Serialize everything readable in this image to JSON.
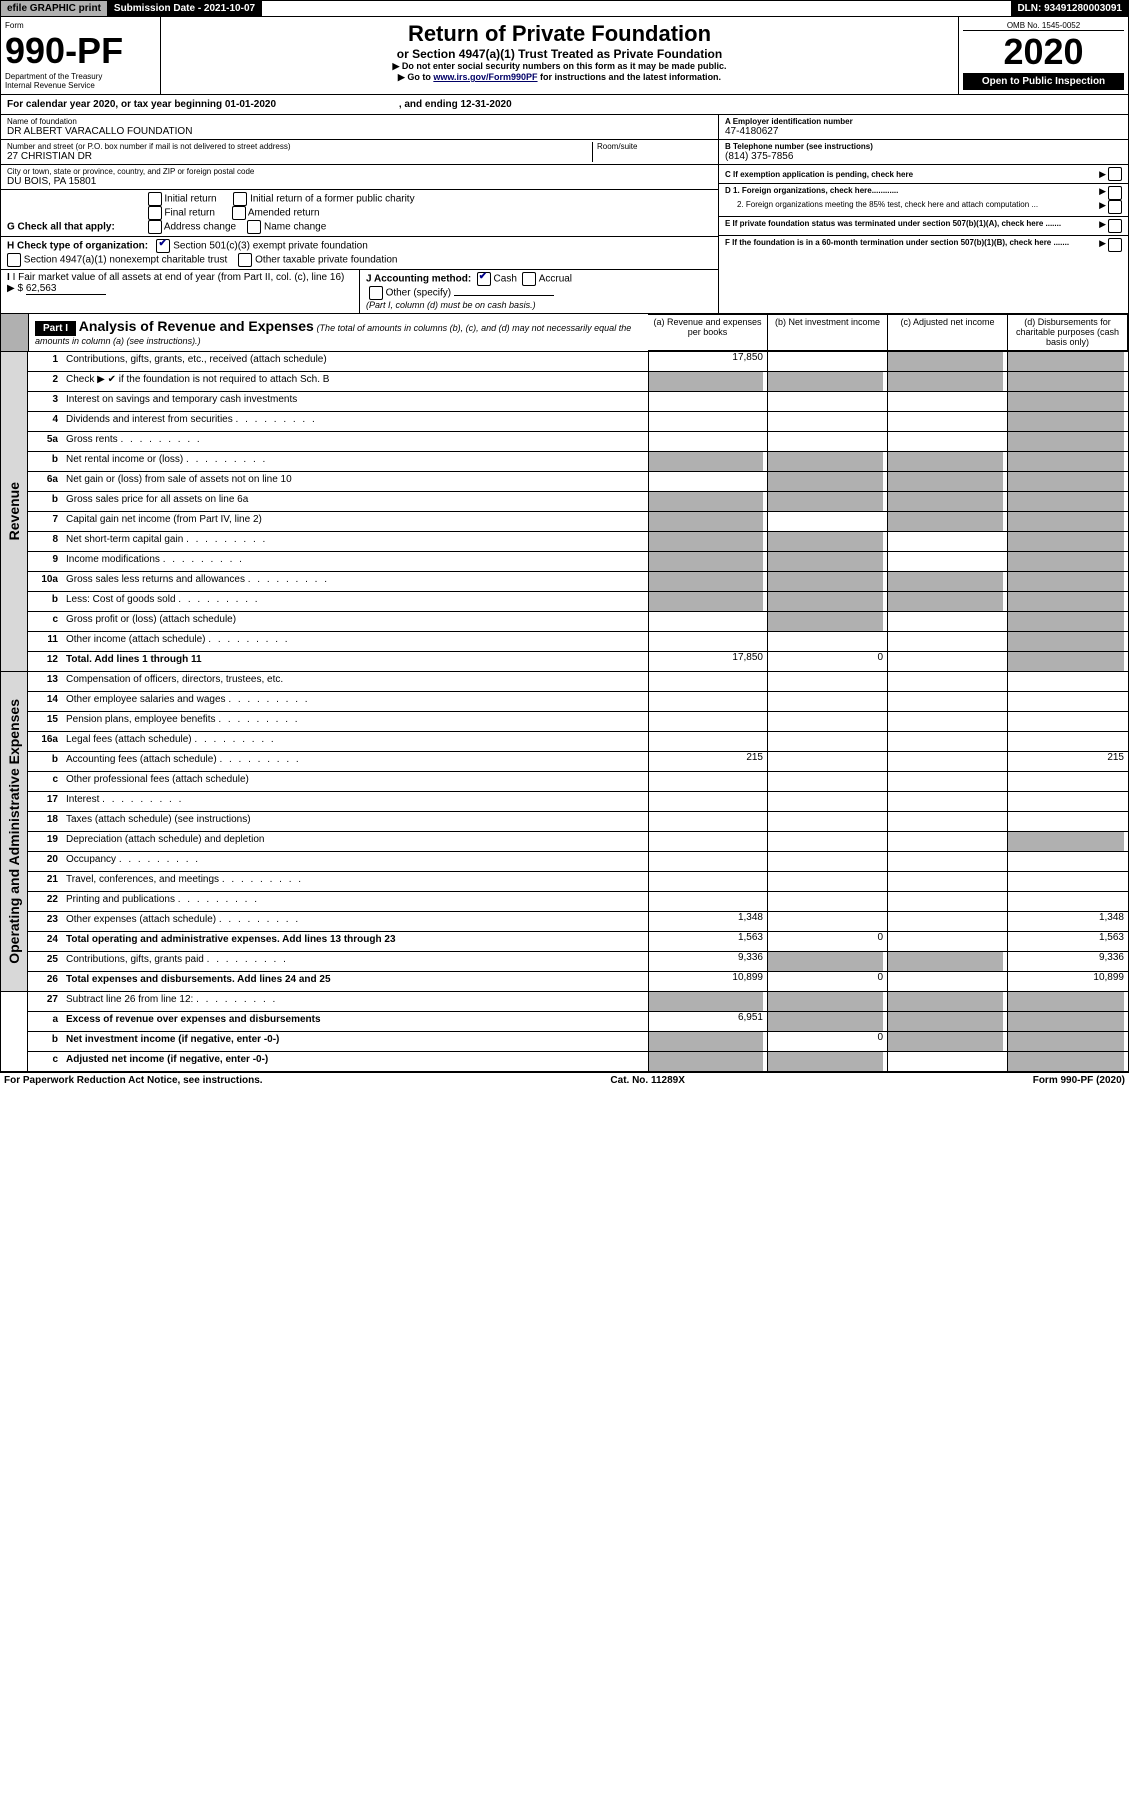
{
  "topbar": {
    "efile": "efile GRAPHIC print",
    "subdate_lbl": "Submission Date - ",
    "subdate": "2021-10-07",
    "dln_lbl": "DLN: ",
    "dln": "93491280003091"
  },
  "header": {
    "form": "Form",
    "form_no": "990-PF",
    "dept": "Department of the Treasury",
    "irs": "Internal Revenue Service",
    "title": "Return of Private Foundation",
    "subtitle": "or Section 4947(a)(1) Trust Treated as Private Foundation",
    "note1": "▶ Do not enter social security numbers on this form as it may be made public.",
    "note2_pre": "▶ Go to ",
    "note2_link": "www.irs.gov/Form990PF",
    "note2_post": " for instructions and the latest information.",
    "omb": "OMB No. 1545-0052",
    "year": "2020",
    "open": "Open to Public Inspection"
  },
  "cal": {
    "text": "For calendar year 2020, or tax year beginning ",
    "begin": "01-01-2020",
    "mid": " , and ending ",
    "end": "12-31-2020"
  },
  "foundation": {
    "name_lbl": "Name of foundation",
    "name": "DR ALBERT VARACALLO FOUNDATION",
    "addr_lbl": "Number and street (or P.O. box number if mail is not delivered to street address)",
    "addr": "27 CHRISTIAN DR",
    "room_lbl": "Room/suite",
    "room": "",
    "city_lbl": "City or town, state or province, country, and ZIP or foreign postal code",
    "city": "DU BOIS, PA  15801"
  },
  "rightinfo": {
    "A_lbl": "A Employer identification number",
    "A": "47-4180627",
    "B_lbl": "B Telephone number (see instructions)",
    "B": "(814) 375-7856",
    "C": "C If exemption application is pending, check here",
    "D1": "D 1. Foreign organizations, check here............",
    "D2": "2. Foreign organizations meeting the 85% test, check here and attach computation ...",
    "E": "E  If private foundation status was terminated under section 507(b)(1)(A), check here .......",
    "F": "F  If the foundation is in a 60-month termination under section 507(b)(1)(B), check here ......."
  },
  "G": {
    "lbl": "G Check all that apply:",
    "opts": [
      "Initial return",
      "Final return",
      "Address change",
      "Initial return of a former public charity",
      "Amended return",
      "Name change"
    ]
  },
  "H": {
    "lbl": "H Check type of organization:",
    "opt1": "Section 501(c)(3) exempt private foundation",
    "opt2": "Section 4947(a)(1) nonexempt charitable trust",
    "opt3": "Other taxable private foundation"
  },
  "I": {
    "lbl": "I Fair market value of all assets at end of year (from Part II, col. (c), line 16)",
    "val_lbl": "▶ $",
    "val": "62,563"
  },
  "J": {
    "lbl": "J Accounting method:",
    "cash": "Cash",
    "accrual": "Accrual",
    "other": "Other (specify)",
    "note": "(Part I, column (d) must be on cash basis.)"
  },
  "part1": {
    "hdr": "Part I",
    "title": "Analysis of Revenue and Expenses",
    "sub": " (The total of amounts in columns (b), (c), and (d) may not necessarily equal the amounts in column (a) (see instructions).)",
    "cols": {
      "a": "(a)  Revenue and expenses per books",
      "b": "(b)  Net investment income",
      "c": "(c)  Adjusted net income",
      "d": "(d)  Disbursements for charitable purposes (cash basis only)"
    }
  },
  "sections": {
    "rev": "Revenue",
    "opex": "Operating and Administrative Expenses"
  },
  "rows": [
    {
      "n": "1",
      "t": "Contributions, gifts, grants, etc., received (attach schedule)",
      "a": "17,850",
      "b": "",
      "c": "x",
      "d": "x"
    },
    {
      "n": "2",
      "t": "Check ▶ ✔ if the foundation is not required to attach Sch. B",
      "a": "x",
      "b": "x",
      "c": "x",
      "d": "x"
    },
    {
      "n": "3",
      "t": "Interest on savings and temporary cash investments",
      "a": "",
      "b": "",
      "c": "",
      "d": "x"
    },
    {
      "n": "4",
      "t": "Dividends and interest from securities",
      "a": "",
      "b": "",
      "c": "",
      "d": "x"
    },
    {
      "n": "5a",
      "t": "Gross rents",
      "a": "",
      "b": "",
      "c": "",
      "d": "x"
    },
    {
      "n": "b",
      "t": "Net rental income or (loss)",
      "a": "x",
      "b": "x",
      "c": "x",
      "d": "x",
      "inline": true
    },
    {
      "n": "6a",
      "t": "Net gain or (loss) from sale of assets not on line 10",
      "a": "",
      "b": "x",
      "c": "x",
      "d": "x"
    },
    {
      "n": "b",
      "t": "Gross sales price for all assets on line 6a",
      "a": "x",
      "b": "x",
      "c": "x",
      "d": "x",
      "inline": true
    },
    {
      "n": "7",
      "t": "Capital gain net income (from Part IV, line 2)",
      "a": "x",
      "b": "",
      "c": "x",
      "d": "x"
    },
    {
      "n": "8",
      "t": "Net short-term capital gain",
      "a": "x",
      "b": "x",
      "c": "",
      "d": "x"
    },
    {
      "n": "9",
      "t": "Income modifications",
      "a": "x",
      "b": "x",
      "c": "",
      "d": "x"
    },
    {
      "n": "10a",
      "t": "Gross sales less returns and allowances",
      "a": "x",
      "b": "x",
      "c": "x",
      "d": "x",
      "inline": true
    },
    {
      "n": "b",
      "t": "Less: Cost of goods sold",
      "a": "x",
      "b": "x",
      "c": "x",
      "d": "x",
      "inline": true
    },
    {
      "n": "c",
      "t": "Gross profit or (loss) (attach schedule)",
      "a": "",
      "b": "x",
      "c": "",
      "d": "x"
    },
    {
      "n": "11",
      "t": "Other income (attach schedule)",
      "a": "",
      "b": "",
      "c": "",
      "d": "x"
    },
    {
      "n": "12",
      "t": "Total. Add lines 1 through 11",
      "bold": true,
      "a": "17,850",
      "b": "0",
      "c": "",
      "d": "x"
    }
  ],
  "oprows": [
    {
      "n": "13",
      "t": "Compensation of officers, directors, trustees, etc.",
      "a": "",
      "b": "",
      "c": "",
      "d": ""
    },
    {
      "n": "14",
      "t": "Other employee salaries and wages",
      "a": "",
      "b": "",
      "c": "",
      "d": ""
    },
    {
      "n": "15",
      "t": "Pension plans, employee benefits",
      "a": "",
      "b": "",
      "c": "",
      "d": ""
    },
    {
      "n": "16a",
      "t": "Legal fees (attach schedule)",
      "a": "",
      "b": "",
      "c": "",
      "d": ""
    },
    {
      "n": "b",
      "t": "Accounting fees (attach schedule)",
      "a": "215",
      "b": "",
      "c": "",
      "d": "215"
    },
    {
      "n": "c",
      "t": "Other professional fees (attach schedule)",
      "a": "",
      "b": "",
      "c": "",
      "d": ""
    },
    {
      "n": "17",
      "t": "Interest",
      "a": "",
      "b": "",
      "c": "",
      "d": ""
    },
    {
      "n": "18",
      "t": "Taxes (attach schedule) (see instructions)",
      "a": "",
      "b": "",
      "c": "",
      "d": ""
    },
    {
      "n": "19",
      "t": "Depreciation (attach schedule) and depletion",
      "a": "",
      "b": "",
      "c": "",
      "d": "x"
    },
    {
      "n": "20",
      "t": "Occupancy",
      "a": "",
      "b": "",
      "c": "",
      "d": ""
    },
    {
      "n": "21",
      "t": "Travel, conferences, and meetings",
      "a": "",
      "b": "",
      "c": "",
      "d": ""
    },
    {
      "n": "22",
      "t": "Printing and publications",
      "a": "",
      "b": "",
      "c": "",
      "d": ""
    },
    {
      "n": "23",
      "t": "Other expenses (attach schedule)",
      "a": "1,348",
      "b": "",
      "c": "",
      "d": "1,348"
    },
    {
      "n": "24",
      "t": "Total operating and administrative expenses. Add lines 13 through 23",
      "bold": true,
      "a": "1,563",
      "b": "0",
      "c": "",
      "d": "1,563"
    },
    {
      "n": "25",
      "t": "Contributions, gifts, grants paid",
      "a": "9,336",
      "b": "x",
      "c": "x",
      "d": "9,336"
    },
    {
      "n": "26",
      "t": "Total expenses and disbursements. Add lines 24 and 25",
      "bold": true,
      "a": "10,899",
      "b": "0",
      "c": "",
      "d": "10,899"
    }
  ],
  "botrows": [
    {
      "n": "27",
      "t": "Subtract line 26 from line 12:",
      "a": "x",
      "b": "x",
      "c": "x",
      "d": "x"
    },
    {
      "n": "a",
      "t": "Excess of revenue over expenses and disbursements",
      "bold": true,
      "a": "6,951",
      "b": "x",
      "c": "x",
      "d": "x"
    },
    {
      "n": "b",
      "t": "Net investment income (if negative, enter -0-)",
      "bold": true,
      "a": "x",
      "b": "0",
      "c": "x",
      "d": "x"
    },
    {
      "n": "c",
      "t": "Adjusted net income (if negative, enter -0-)",
      "bold": true,
      "a": "x",
      "b": "x",
      "c": "",
      "d": "x"
    }
  ],
  "footer": {
    "left": "For Paperwork Reduction Act Notice, see instructions.",
    "mid": "Cat. No. 11289X",
    "right": "Form 990-PF (2020)"
  }
}
